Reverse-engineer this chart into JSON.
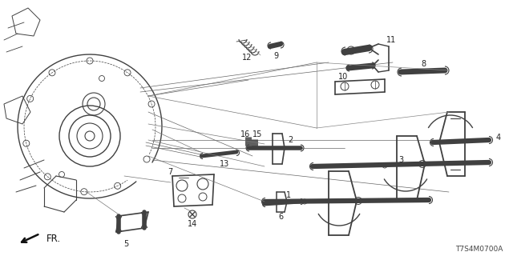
{
  "bg_color": "#ffffff",
  "diagram_code": "T7S4M0700A",
  "fr_label": "FR.",
  "line_color": "#404040",
  "text_color": "#222222",
  "label_fontsize": 7.0
}
